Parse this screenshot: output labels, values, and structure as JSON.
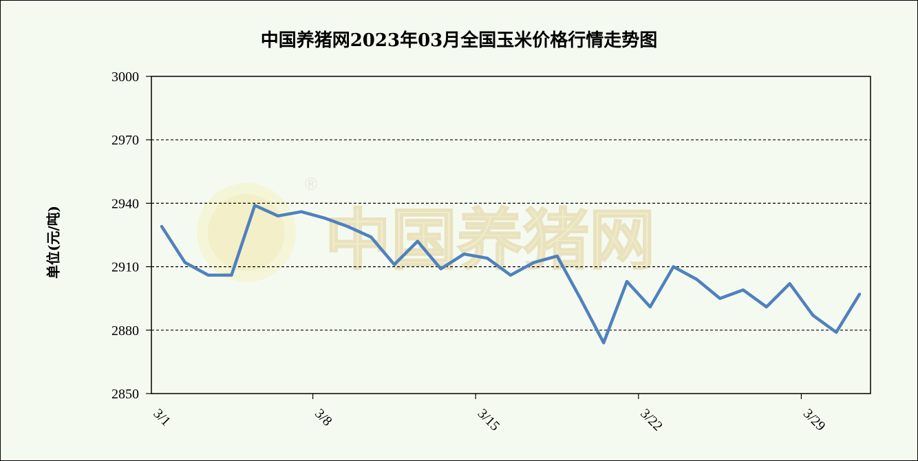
{
  "chart_data": {
    "type": "line",
    "title": "中国养猪网2023年03月全国玉米价格行情走势图",
    "ylabel": "单位(元/吨)",
    "xlabel": "",
    "ylim": [
      2850,
      3000
    ],
    "yticks": [
      3000,
      2970,
      2940,
      2910,
      2880,
      2850
    ],
    "grid": "horizontal-dashed",
    "x": [
      "3/1",
      "3/2",
      "3/3",
      "3/4",
      "3/5",
      "3/6",
      "3/7",
      "3/8",
      "3/9",
      "3/10",
      "3/11",
      "3/12",
      "3/13",
      "3/14",
      "3/15",
      "3/16",
      "3/17",
      "3/18",
      "3/19",
      "3/20",
      "3/21",
      "3/22",
      "3/23",
      "3/24",
      "3/25",
      "3/26",
      "3/27",
      "3/28",
      "3/29",
      "3/30",
      "3/31"
    ],
    "xtick_labels": [
      "3/1",
      "3/8",
      "3/15",
      "3/22",
      "3/29"
    ],
    "series": [
      {
        "values": [
          2929,
          2912,
          2906,
          2906,
          2939,
          2934,
          2936,
          2933,
          2929,
          2924,
          2911,
          2922,
          2909,
          2916,
          2914,
          2906,
          2912,
          2915,
          2895,
          2874,
          2903,
          2891,
          2910,
          2904,
          2895,
          2899,
          2891,
          2902,
          2887,
          2879,
          2897
        ],
        "color": "#4f81bd"
      }
    ]
  },
  "watermark": {
    "text": "中国养猪网",
    "registered_mark": "®"
  }
}
